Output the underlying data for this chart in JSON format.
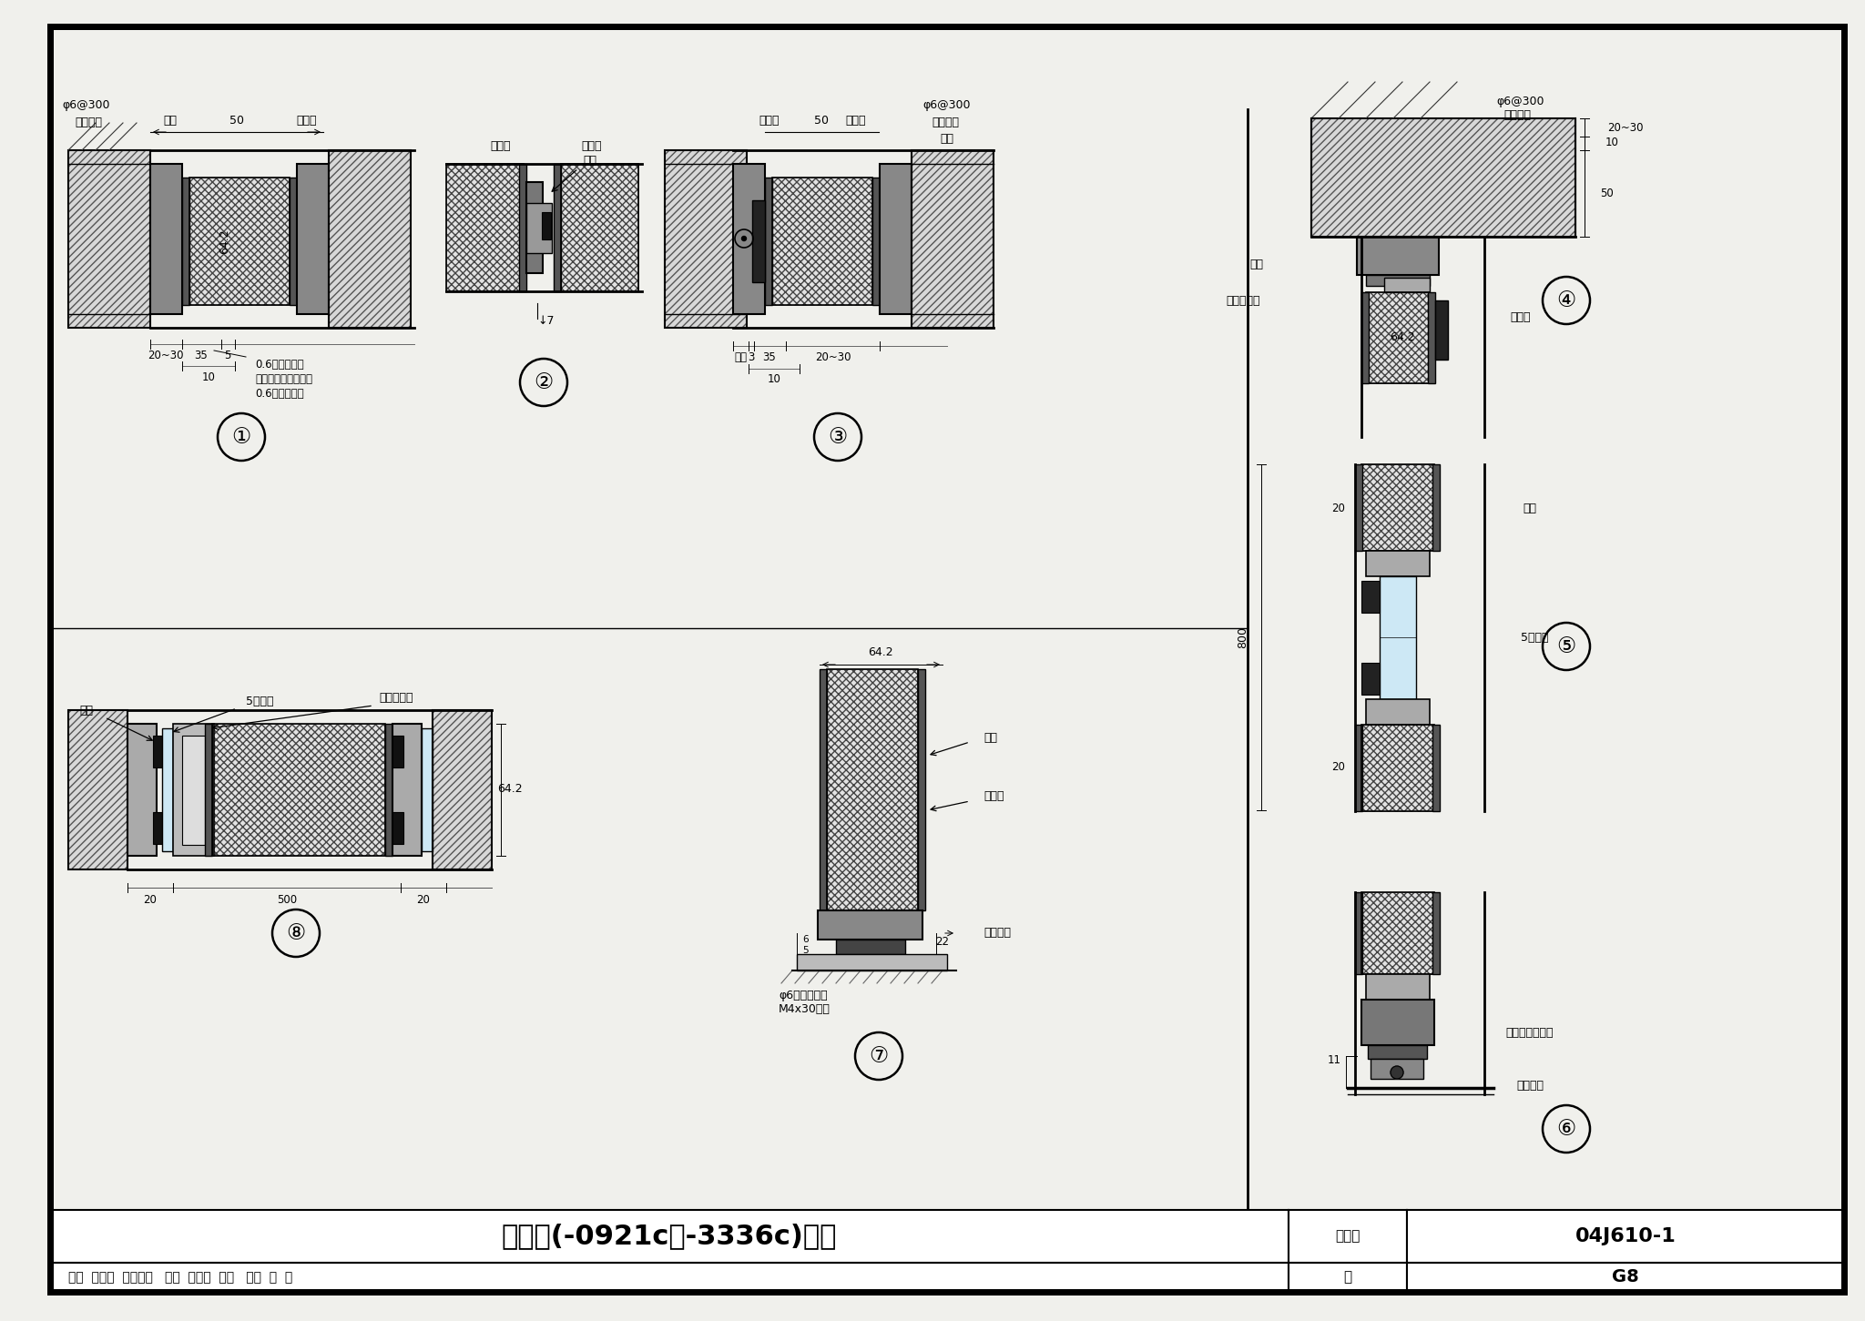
{
  "title": "隔声门(-0921c～-3336c)详图",
  "fig_number": "04J610-1",
  "page": "G8",
  "bg_color": "#f0f0ec",
  "note_lines": [
    "0.6厚彩色钢板",
    "多孔材料由项目确定",
    "0.6厚彩色钢板"
  ]
}
